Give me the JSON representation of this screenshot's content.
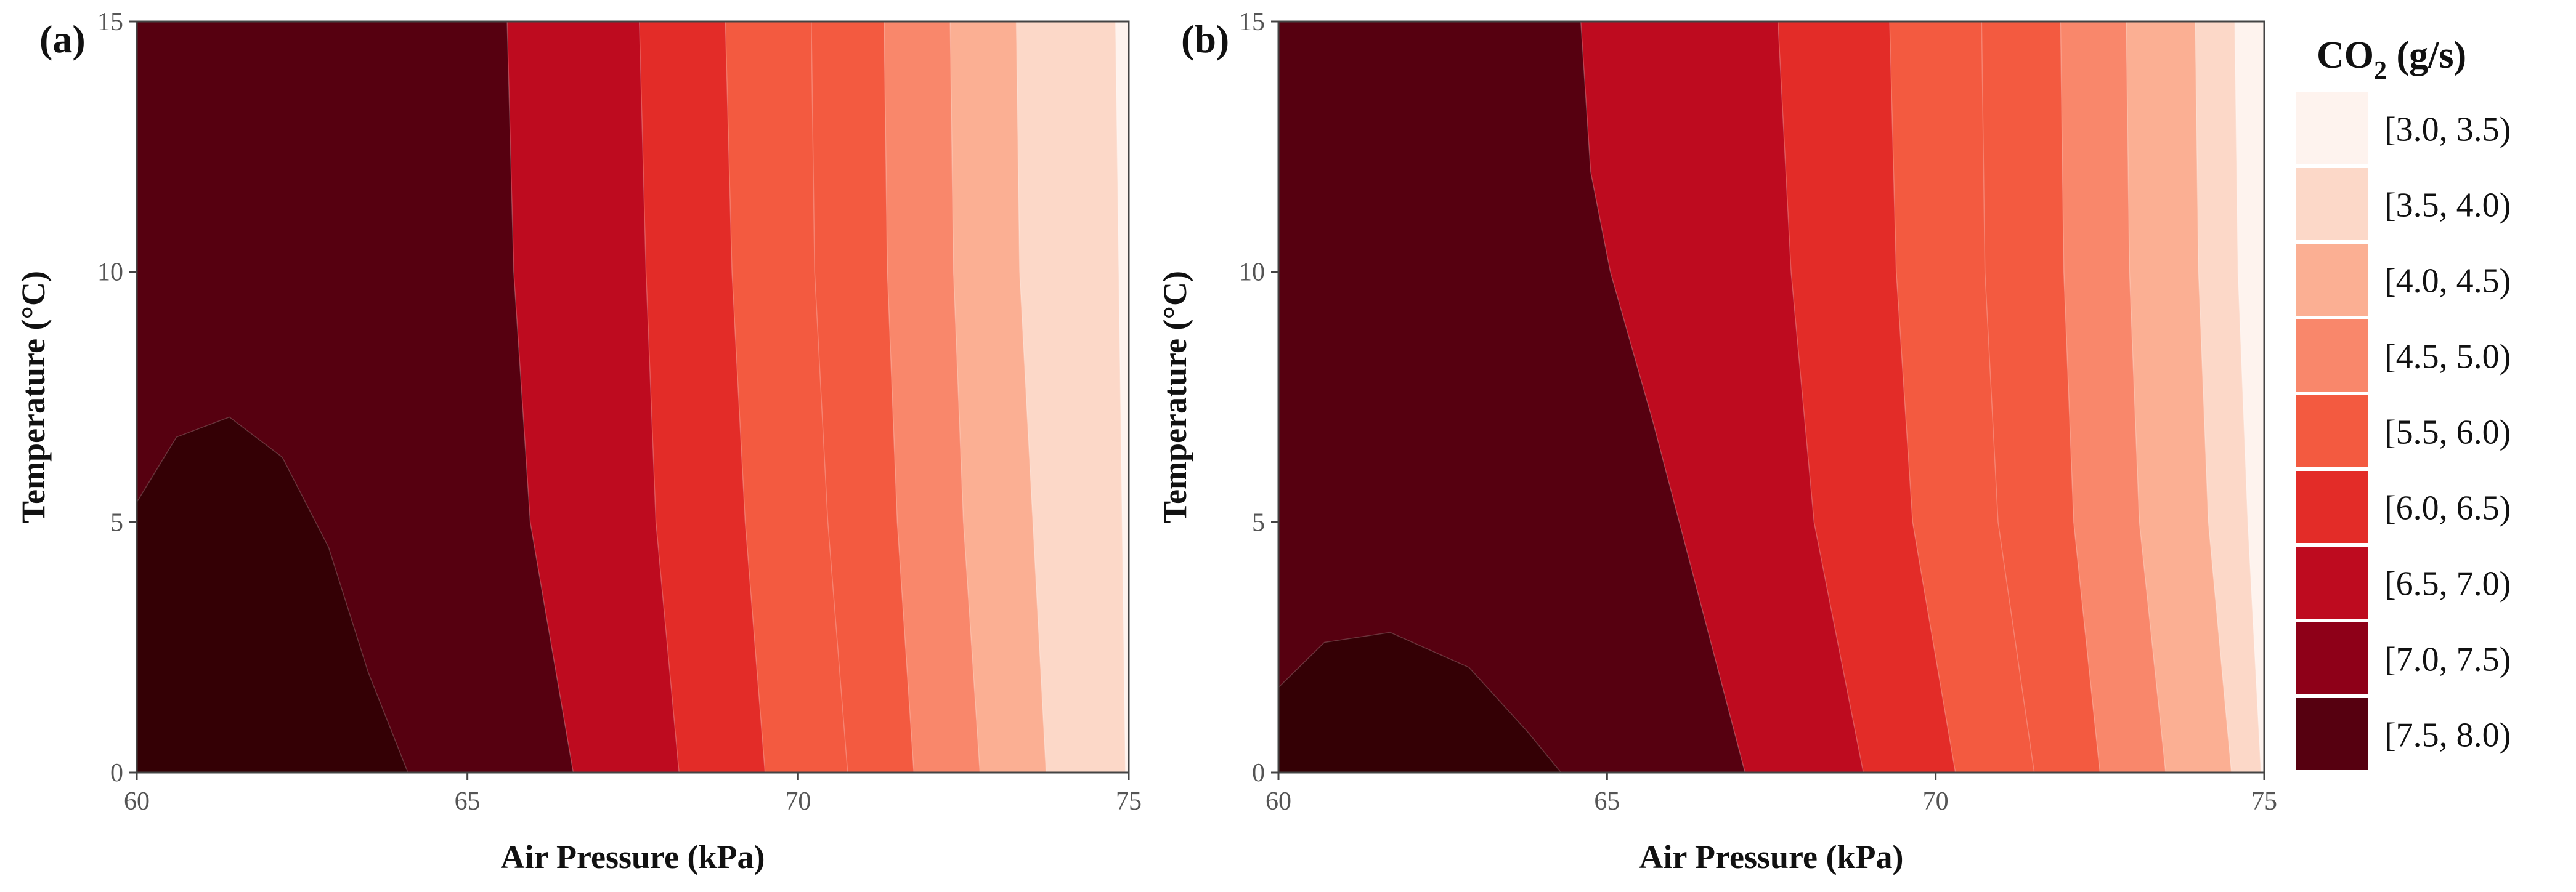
{
  "chart_data": [
    {
      "type": "contour",
      "panel_label": "(a)",
      "xlabel": "Air Pressure (kPa)",
      "ylabel": "Temperature (°C)",
      "xlim": [
        60,
        75
      ],
      "ylim": [
        0,
        15
      ],
      "x_ticks": [
        60,
        65,
        70,
        75
      ],
      "y_ticks": [
        0,
        5,
        10,
        15
      ],
      "grid": false,
      "boundaries": [
        {
          "level": 7.5,
          "points": [
            [
              60,
              5.4
            ],
            [
              60.6,
              6.7
            ],
            [
              61.4,
              7.1
            ],
            [
              62.2,
              6.3
            ],
            [
              62.9,
              4.5
            ],
            [
              63.5,
              2.0
            ],
            [
              64.1,
              0
            ]
          ]
        },
        {
          "level": 7.0,
          "points": [
            [
              65.6,
              15
            ],
            [
              65.7,
              10
            ],
            [
              65.95,
              5
            ],
            [
              66.6,
              0
            ]
          ]
        },
        {
          "level": 6.5,
          "points": [
            [
              67.6,
              15
            ],
            [
              67.7,
              10
            ],
            [
              67.85,
              5
            ],
            [
              68.2,
              0
            ]
          ]
        },
        {
          "level": 6.0,
          "points": [
            [
              68.9,
              15
            ],
            [
              69.0,
              10
            ],
            [
              69.2,
              5
            ],
            [
              69.5,
              0
            ]
          ]
        },
        {
          "level": 5.5,
          "points": [
            [
              70.2,
              15
            ],
            [
              70.25,
              10
            ],
            [
              70.45,
              5
            ],
            [
              70.75,
              0
            ]
          ]
        },
        {
          "level": 5.0,
          "points": [
            [
              71.3,
              15
            ],
            [
              71.35,
              10
            ],
            [
              71.5,
              5
            ],
            [
              71.75,
              0
            ]
          ]
        },
        {
          "level": 4.5,
          "points": [
            [
              72.3,
              15
            ],
            [
              72.35,
              10
            ],
            [
              72.5,
              5
            ],
            [
              72.75,
              0
            ]
          ]
        },
        {
          "level": 4.0,
          "points": [
            [
              73.3,
              15
            ],
            [
              73.35,
              10
            ],
            [
              73.55,
              5
            ],
            [
              73.75,
              0
            ]
          ]
        },
        {
          "level": 3.5,
          "points": [
            [
              74.8,
              15
            ],
            [
              74.85,
              10
            ],
            [
              74.9,
              5
            ],
            [
              74.95,
              0
            ]
          ]
        }
      ]
    },
    {
      "type": "contour",
      "panel_label": "(b)",
      "xlabel": "Air Pressure (kPa)",
      "ylabel": "Temperature (°C)",
      "xlim": [
        60,
        75
      ],
      "ylim": [
        0,
        15
      ],
      "x_ticks": [
        60,
        65,
        70,
        75
      ],
      "y_ticks": [
        0,
        5,
        10,
        15
      ],
      "grid": false,
      "boundaries": [
        {
          "level": 7.5,
          "points": [
            [
              60,
              1.7
            ],
            [
              60.7,
              2.6
            ],
            [
              61.7,
              2.8
            ],
            [
              62.9,
              2.1
            ],
            [
              63.8,
              0.8
            ],
            [
              64.3,
              0
            ]
          ]
        },
        {
          "level": 7.0,
          "points": [
            [
              64.6,
              15
            ],
            [
              64.75,
              12
            ],
            [
              65.05,
              10
            ],
            [
              65.7,
              7
            ],
            [
              66.5,
              3
            ],
            [
              67.1,
              0
            ]
          ]
        },
        {
          "level": 6.5,
          "points": [
            [
              67.6,
              15
            ],
            [
              67.8,
              10
            ],
            [
              68.15,
              5
            ],
            [
              68.9,
              0
            ]
          ]
        },
        {
          "level": 6.0,
          "points": [
            [
              69.3,
              15
            ],
            [
              69.4,
              10
            ],
            [
              69.65,
              5
            ],
            [
              70.3,
              0
            ]
          ]
        },
        {
          "level": 5.5,
          "points": [
            [
              70.7,
              15
            ],
            [
              70.75,
              10
            ],
            [
              70.95,
              5
            ],
            [
              71.5,
              0
            ]
          ]
        },
        {
          "level": 5.0,
          "points": [
            [
              71.9,
              15
            ],
            [
              71.95,
              10
            ],
            [
              72.1,
              5
            ],
            [
              72.5,
              0
            ]
          ]
        },
        {
          "level": 4.5,
          "points": [
            [
              72.9,
              15
            ],
            [
              72.95,
              10
            ],
            [
              73.1,
              5
            ],
            [
              73.5,
              0
            ]
          ]
        },
        {
          "level": 4.0,
          "points": [
            [
              73.95,
              15
            ],
            [
              74.0,
              10
            ],
            [
              74.15,
              5
            ],
            [
              74.5,
              0
            ]
          ]
        },
        {
          "level": 3.5,
          "points": [
            [
              74.55,
              15
            ],
            [
              74.6,
              10
            ],
            [
              74.75,
              5
            ],
            [
              74.95,
              0
            ]
          ]
        }
      ]
    }
  ],
  "legend": {
    "title_main": "CO",
    "title_sub": "2",
    "title_unit": " (g/s)",
    "placement": "right",
    "items": [
      {
        "label": "[3.0, 3.5)",
        "color": "#FEF3EE"
      },
      {
        "label": "[3.5, 4.0)",
        "color": "#FCD8C8"
      },
      {
        "label": "[4.0, 4.5)",
        "color": "#FBAF93"
      },
      {
        "label": "[4.5, 5.0)",
        "color": "#F9876B"
      },
      {
        "label": "[5.5, 6.0)",
        "color": "#F35A40"
      },
      {
        "label": "[6.0, 6.5)",
        "color": "#E32C28"
      },
      {
        "label": "[6.5, 7.0)",
        "color": "#BE0B1F"
      },
      {
        "label": "[7.0, 7.5)",
        "color": "#8E0018"
      },
      {
        "label": "[7.5, 8.0)",
        "color": "#560010"
      }
    ],
    "darkest_region_color": "#340005"
  }
}
